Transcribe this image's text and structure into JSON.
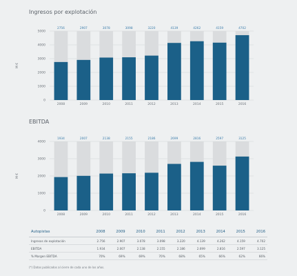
{
  "chart_data": [
    {
      "type": "bar",
      "title": "Ingresos por explotación",
      "ylabel": "M €",
      "categories": [
        "2008",
        "2009",
        "2010",
        "2011",
        "2012",
        "2013",
        "2014",
        "2015",
        "2016"
      ],
      "values": [
        2756,
        2907,
        3078,
        3098,
        3220,
        4139,
        4262,
        4159,
        4702
      ],
      "labels": [
        "2756",
        "2907",
        "3078",
        "3098",
        "3220",
        "4139",
        "4262",
        "4159",
        "4702"
      ],
      "ylim": [
        0,
        5000
      ],
      "yticks": [
        "0",
        "1000",
        "2000",
        "3000",
        "4000",
        "5000"
      ],
      "grid": true,
      "bar_color": "#1b6088",
      "bg_color": "#dadcde",
      "label_color": "#3a7cab"
    },
    {
      "type": "bar",
      "title": "EBITDA",
      "ylabel": "M €",
      "categories": [
        "2008",
        "2009",
        "2010",
        "2011",
        "2012",
        "2013",
        "2014",
        "2015",
        "2016"
      ],
      "values": [
        1934,
        2007,
        2138,
        2155,
        2186,
        2699,
        2816,
        2597,
        3125
      ],
      "labels": [
        "1934",
        "2007",
        "2138",
        "2155",
        "2186",
        "2699",
        "2816",
        "2597",
        "3125"
      ],
      "ylim": [
        0,
        4000
      ],
      "yticks": [
        "0",
        "1000",
        "2000",
        "3000",
        "4000"
      ],
      "grid": true,
      "bar_color": "#1b6088",
      "bg_color": "#dadcde",
      "label_color": "#3a7cab"
    }
  ],
  "table": {
    "headers": [
      "Autopistas",
      "2008",
      "2009",
      "2010",
      "2011",
      "2012",
      "2013",
      "2014",
      "2015",
      "2016"
    ],
    "rows": [
      [
        "Ingresos de explotación",
        "2.756",
        "2.907",
        "3.078",
        "3.098",
        "3.220",
        "4.139",
        "4.262",
        "4.159",
        "4.702"
      ],
      [
        "EBITDA",
        "1.934",
        "2.007",
        "2.138",
        "2.155",
        "2.186",
        "2.699",
        "2.816",
        "2.597",
        "3.125"
      ],
      [
        "% Margen EBITDA",
        "70%",
        "69%",
        "69%",
        "70%",
        "68%",
        "65%",
        "66%",
        "62%",
        "66%"
      ]
    ]
  },
  "footnote": "(*) Datos publicados al cierre de cada uno de los años."
}
